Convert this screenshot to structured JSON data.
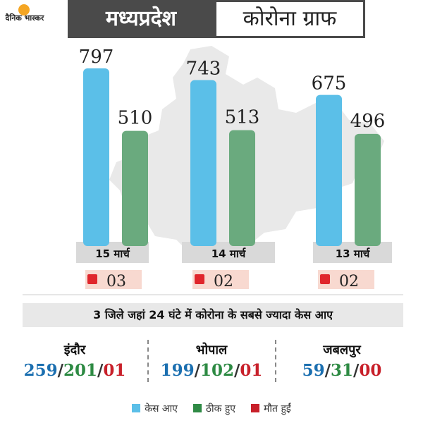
{
  "header": {
    "logo_text": "दैनिक भास्कर",
    "title_left": "मध्यप्रदेश",
    "title_right": "कोरोना ग्राफ"
  },
  "colors": {
    "cases": "#5bbfe8",
    "recovered": "#6aaa7e",
    "deaths": "#e0262c",
    "date_bar": "#d9d9d9",
    "death_box": "#f8d9d0",
    "map": "#e9e9e9"
  },
  "chart_data": {
    "type": "bar",
    "categories": [
      "15 मार्च",
      "14 मार्च",
      "13 मार्च"
    ],
    "series": [
      {
        "name": "केस आए",
        "values": [
          797,
          743,
          675
        ]
      },
      {
        "name": "ठीक हुए",
        "values": [
          510,
          513,
          496
        ]
      },
      {
        "name": "मौत हुईं",
        "values": [
          "03",
          "02",
          "02"
        ]
      }
    ],
    "ylim": [
      0,
      797
    ],
    "grid": false,
    "legend": "bottom-center"
  },
  "districts": {
    "title": "3 जिले जहां 24 घंटे में कोरोना के सबसे ज्यादा केस आए",
    "items": [
      {
        "name": "इंदौर",
        "cases": "259",
        "recovered": "201",
        "deaths": "01"
      },
      {
        "name": "भोपाल",
        "cases": "199",
        "recovered": "102",
        "deaths": "01"
      },
      {
        "name": "जबलपुर",
        "cases": "59",
        "recovered": "31",
        "deaths": "00"
      }
    ]
  },
  "legend": {
    "cases": "केस आए",
    "recovered": "ठीक हुए",
    "deaths": "मौत हुईं"
  }
}
